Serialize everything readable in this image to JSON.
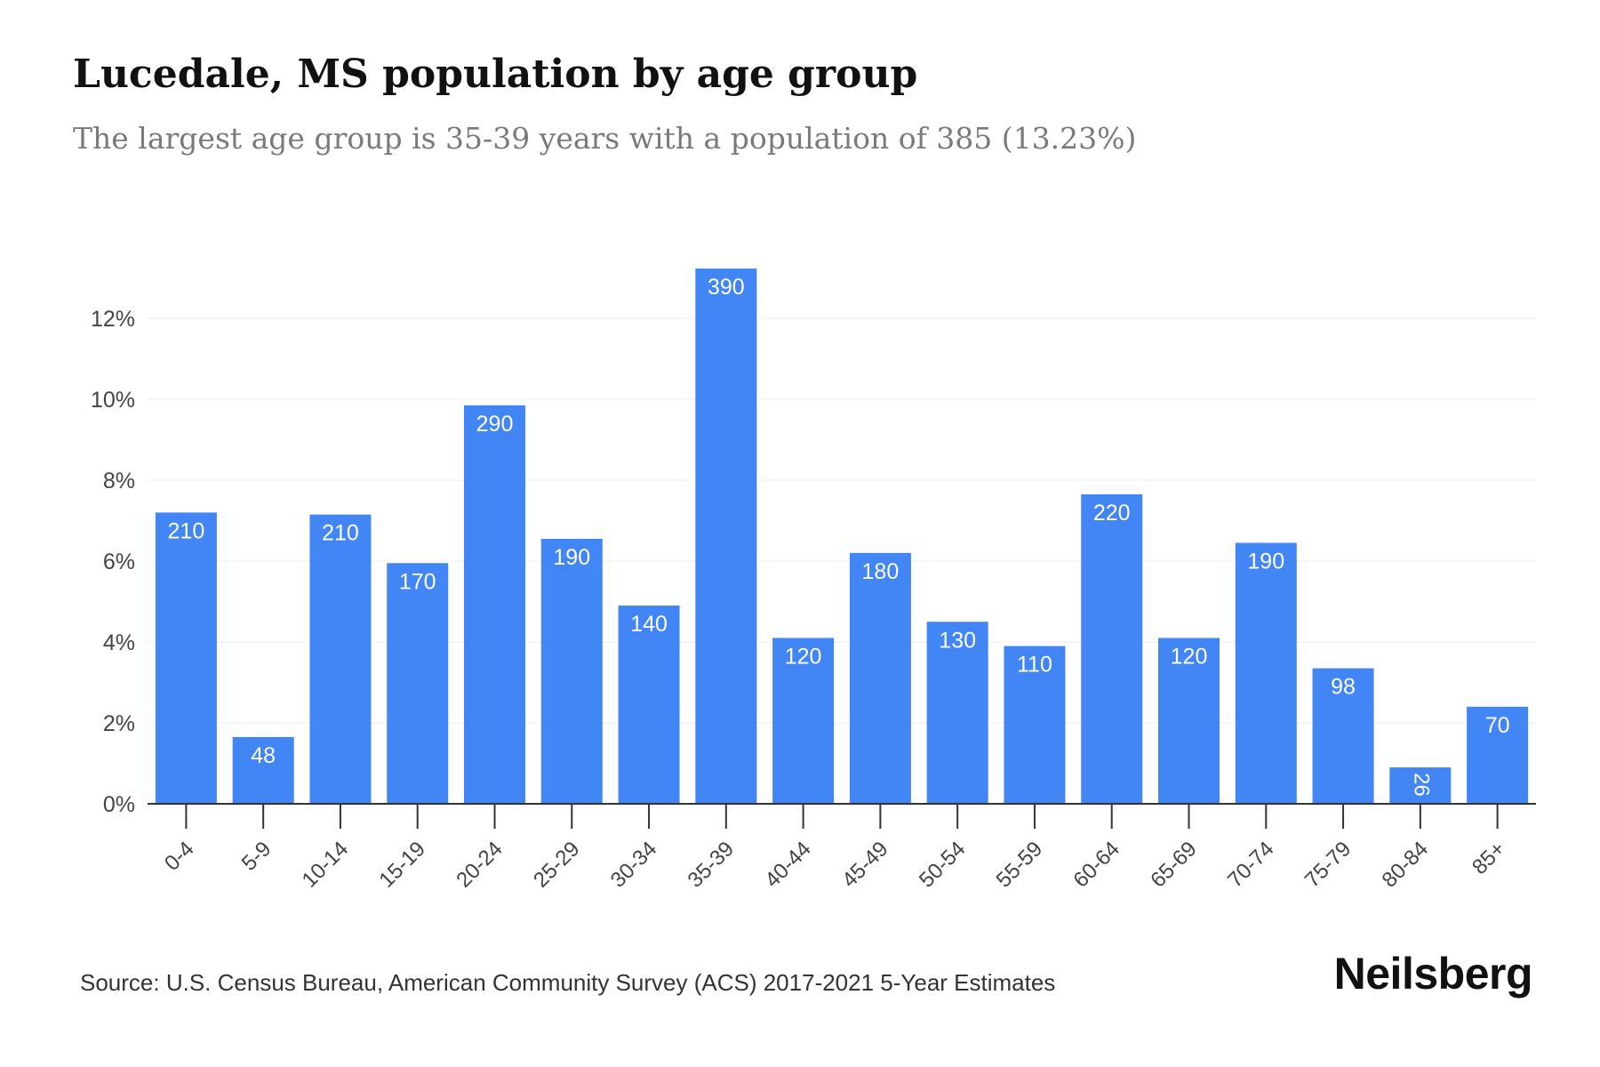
{
  "header": {
    "title": "Lucedale, MS population by age group",
    "subtitle": "The largest age group is 35-39 years with a population of 385 (13.23%)"
  },
  "footer": {
    "source": "Source: U.S. Census Bureau, American Community Survey (ACS) 2017-2021 5-Year Estimates",
    "brand": "Neilsberg"
  },
  "colors": {
    "bar": "#4285f4",
    "bar_label": "#ffffff",
    "grid": "#ececec",
    "axis": "#333333",
    "tick_text": "#444444"
  },
  "chart_data": {
    "type": "bar",
    "categories": [
      "0-4",
      "5-9",
      "10-14",
      "15-19",
      "20-24",
      "25-29",
      "30-34",
      "35-39",
      "40-44",
      "45-49",
      "50-54",
      "55-59",
      "60-64",
      "65-69",
      "70-74",
      "75-79",
      "80-84",
      "85+"
    ],
    "values": [
      7.2,
      1.65,
      7.15,
      5.95,
      9.85,
      6.55,
      4.9,
      13.23,
      4.1,
      6.2,
      4.5,
      3.9,
      7.65,
      4.1,
      6.45,
      3.35,
      0.9,
      2.4
    ],
    "data_labels": [
      "210",
      "48",
      "210",
      "170",
      "290",
      "190",
      "140",
      "390",
      "120",
      "180",
      "130",
      "110",
      "220",
      "120",
      "190",
      "98",
      "26",
      "70"
    ],
    "y_ticks": [
      0,
      2,
      4,
      6,
      8,
      10,
      12
    ],
    "y_tick_labels": [
      "0%",
      "2%",
      "4%",
      "6%",
      "8%",
      "10%",
      "12%"
    ],
    "ylim": [
      0,
      14
    ],
    "grid": true,
    "legend": "none"
  }
}
